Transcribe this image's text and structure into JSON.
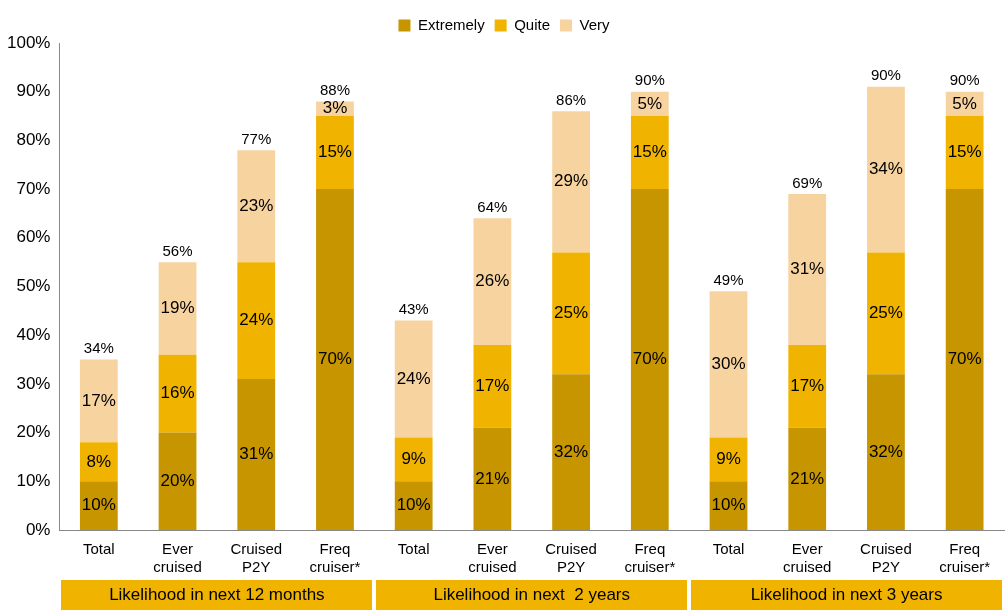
{
  "chart_data": {
    "type": "bar",
    "stacked": true,
    "categories": [
      "Total",
      "Ever cruised",
      "Cruised P2Y",
      "Freq cruiser*",
      "Total",
      "Ever cruised",
      "Cruised P2Y",
      "Freq cruiser*",
      "Total",
      "Ever cruised",
      "Cruised P2Y",
      "Freq cruiser*"
    ],
    "series": [
      {
        "name": "Extremely",
        "color": "#c79500",
        "values": [
          10,
          20,
          31,
          70,
          10,
          21,
          32,
          70,
          10,
          21,
          32,
          70
        ],
        "value_labels": [
          "10%",
          "20%",
          "31%",
          "70%",
          "10%",
          "21%",
          "32%",
          "70%",
          "10%",
          "21%",
          "32%",
          "70%"
        ]
      },
      {
        "name": "Quite",
        "color": "#f0b400",
        "values": [
          8,
          16,
          24,
          15,
          9,
          17,
          25,
          15,
          9,
          17,
          25,
          15
        ],
        "value_labels": [
          "8%",
          "16%",
          "24%",
          "15%",
          "9%",
          "17%",
          "25%",
          "15%",
          "9%",
          "17%",
          "25%",
          "15%"
        ]
      },
      {
        "name": "Very",
        "color": "#f7d3a0",
        "values": [
          17,
          19,
          23,
          3,
          24,
          26,
          29,
          5,
          30,
          31,
          34,
          5
        ],
        "value_labels": [
          "17%",
          "19%",
          "23%",
          "3%",
          "24%",
          "26%",
          "29%",
          "5%",
          "30%",
          "31%",
          "34%",
          "5%"
        ]
      }
    ],
    "totals": [
      "34%",
      "56%",
      "77%",
      "88%",
      "43%",
      "64%",
      "86%",
      "90%",
      "49%",
      "69%",
      "90%",
      "90%"
    ],
    "ylim": [
      0,
      100
    ],
    "yticks": [
      {
        "value": 0,
        "label": "0%"
      },
      {
        "value": 10,
        "label": "10%"
      },
      {
        "value": 20,
        "label": "20%"
      },
      {
        "value": 30,
        "label": "30%"
      },
      {
        "value": 40,
        "label": "40%"
      },
      {
        "value": 50,
        "label": "50%"
      },
      {
        "value": 60,
        "label": "60%"
      },
      {
        "value": 70,
        "label": "70%"
      },
      {
        "value": 80,
        "label": "80%"
      },
      {
        "value": 90,
        "label": "90%"
      },
      {
        "value": 100,
        "label": "100%"
      }
    ],
    "grid": false,
    "legend": "top",
    "annotations": [
      "Likelihood in next 12 months",
      "Likelihood in next  2 years",
      "Likelihood in next 3 years"
    ]
  }
}
